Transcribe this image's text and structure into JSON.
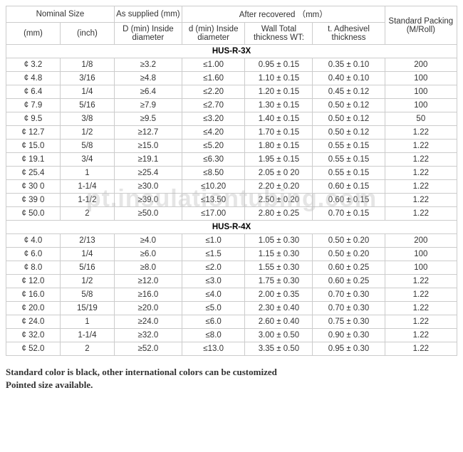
{
  "headers": {
    "nominal": "Nominal Size",
    "supplied": "As supplied (mm)",
    "recovered": "After recovered （mm）",
    "packing": "Standard Packing (M/Roll)",
    "mm": "(mm)",
    "inch": "(inch)",
    "D": "D (min) Inside diameter",
    "d": "d (min) Inside diameter",
    "WT": "Wall Total thickness WT:",
    "tA": "t.   Adhesivel thickness"
  },
  "sections": [
    {
      "title": "HUS-R-3X",
      "rows": [
        {
          "mm": "¢ 3.2",
          "inch": "1/8",
          "D": "≥3.2",
          "d": "≤1.00",
          "WT": "0.95 ± 0.15",
          "tA": "0.35 ± 0.10",
          "P": "200"
        },
        {
          "mm": "¢ 4.8",
          "inch": "3/16",
          "D": "≥4.8",
          "d": "≤1.60",
          "WT": "1.10 ± 0.15",
          "tA": "0.40 ± 0.10",
          "P": "100"
        },
        {
          "mm": "¢ 6.4",
          "inch": "1/4",
          "D": "≥6.4",
          "d": "≤2.20",
          "WT": "1.20 ± 0.15",
          "tA": "0.45 ± 0.12",
          "P": "100"
        },
        {
          "mm": "¢ 7.9",
          "inch": "5/16",
          "D": "≥7.9",
          "d": "≤2.70",
          "WT": "1.30 ± 0.15",
          "tA": "0.50 ± 0.12",
          "P": "100"
        },
        {
          "mm": "¢ 9.5",
          "inch": "3/8",
          "D": "≥9.5",
          "d": "≤3.20",
          "WT": "1.40 ± 0.15",
          "tA": "0.50 ± 0.12",
          "P": "50"
        },
        {
          "mm": "¢ 12.7",
          "inch": "1/2",
          "D": "≥12.7",
          "d": "≤4.20",
          "WT": "1.70 ± 0.15",
          "tA": "0.50 ± 0.12",
          "P": "1.22"
        },
        {
          "mm": "¢ 15.0",
          "inch": "5/8",
          "D": "≥15.0",
          "d": "≤5.20",
          "WT": "1.80 ± 0.15",
          "tA": "0.55 ± 0.15",
          "P": "1.22"
        },
        {
          "mm": "¢ 19.1",
          "inch": "3/4",
          "D": "≥19.1",
          "d": "≤6.30",
          "WT": "1.95 ± 0.15",
          "tA": "0.55 ± 0.15",
          "P": "1.22"
        },
        {
          "mm": "¢ 25.4",
          "inch": "1",
          "D": "≥25.4",
          "d": "≤8.50",
          "WT": "2.05 ± 0 20",
          "tA": "0.55 ± 0.15",
          "P": "1.22"
        },
        {
          "mm": "¢ 30 0",
          "inch": "1-1/4",
          "D": "≥30.0",
          "d": "≤10.20",
          "WT": "2.20 ± 0.20",
          "tA": "0.60 ± 0.15",
          "P": "1.22"
        },
        {
          "mm": "¢ 39 0",
          "inch": "1-1/2",
          "D": "≥39.0",
          "d": "≤13.50",
          "WT": "2.50 ± 0.20",
          "tA": "0.60 ± 0.15",
          "P": "1.22"
        },
        {
          "mm": "¢ 50.0",
          "inch": "2",
          "D": "≥50.0",
          "d": "≤17.00",
          "WT": "2.80 ± 0.25",
          "tA": "0.70 ± 0.15",
          "P": "1.22"
        }
      ]
    },
    {
      "title": "HUS-R-4X",
      "rows": [
        {
          "mm": "¢ 4.0",
          "inch": "2/13",
          "D": "≥4.0",
          "d": "≤1.0",
          "WT": "1.05 ± 0.30",
          "tA": "0.50 ± 0.20",
          "P": "200"
        },
        {
          "mm": "¢ 6.0",
          "inch": "1/4",
          "D": "≥6.0",
          "d": "≤1.5",
          "WT": "1.15 ± 0.30",
          "tA": "0.50 ± 0.20",
          "P": "100"
        },
        {
          "mm": "¢ 8.0",
          "inch": "5/16",
          "D": "≥8.0",
          "d": "≤2.0",
          "WT": "1.55 ± 0.30",
          "tA": "0.60 ± 0.25",
          "P": "100"
        },
        {
          "mm": "¢ 12.0",
          "inch": "1/2",
          "D": "≥12.0",
          "d": "≤3.0",
          "WT": "1.75 ± 0.30",
          "tA": "0.60 ± 0.25",
          "P": "1.22"
        },
        {
          "mm": "¢ 16.0",
          "inch": "5/8",
          "D": "≥16.0",
          "d": "≤4.0",
          "WT": "2.00 ± 0.35",
          "tA": "0.70 ± 0.30",
          "P": "1.22"
        },
        {
          "mm": "¢ 20.0",
          "inch": "15/19",
          "D": "≥20.0",
          "d": "≤5.0",
          "WT": "2.30 ± 0.40",
          "tA": "0.70 ± 0.30",
          "P": "1.22"
        },
        {
          "mm": "¢ 24.0",
          "inch": "1",
          "D": "≥24.0",
          "d": "≤6.0",
          "WT": "2.60 ± 0.40",
          "tA": "0.75 ± 0.30",
          "P": "1.22"
        },
        {
          "mm": "¢ 32.0",
          "inch": "1-1/4",
          "D": "≥32.0",
          "d": "≤8.0",
          "WT": "3.00 ± 0.50",
          "tA": "0.90 ± 0.30",
          "P": "1.22"
        },
        {
          "mm": "¢ 52.0",
          "inch": "2",
          "D": "≥52.0",
          "d": "≤13.0",
          "WT": "3.35 ± 0.50",
          "tA": "0.95 ± 0.30",
          "P": "1.22"
        }
      ]
    }
  ],
  "footer": {
    "line1": "Standard color is black, other international colors can be customized",
    "line2": "Pointed size available."
  },
  "watermark": "pt.insulationtubing.com",
  "col_widths": [
    "12%",
    "12%",
    "15%",
    "14%",
    "15%",
    "16%",
    "16%"
  ]
}
